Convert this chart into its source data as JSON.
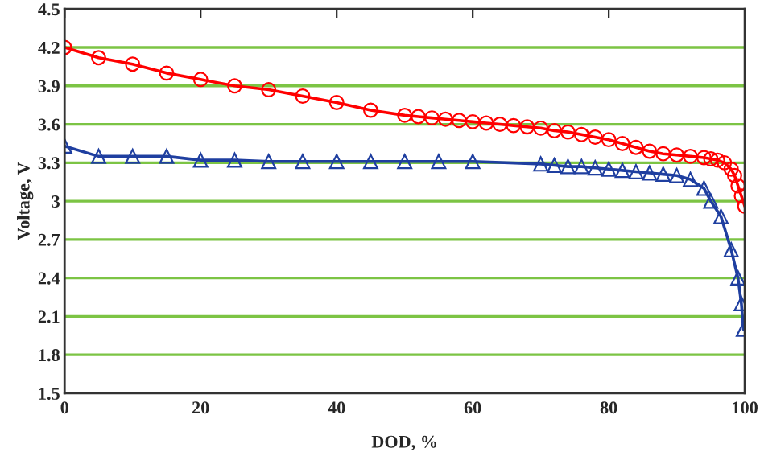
{
  "chart_data": {
    "type": "line",
    "xlabel": "DOD, %",
    "ylabel": "Voltage, V",
    "xlim": [
      0,
      100
    ],
    "xticks": [
      0,
      20,
      40,
      60,
      80,
      100
    ],
    "ylim": [
      1.5,
      4.5
    ],
    "yticks": [
      1.5,
      1.8,
      2.1,
      2.4,
      2.7,
      3,
      3.3,
      3.6,
      3.9,
      4.2,
      4.5
    ],
    "grid": "y",
    "legend": false,
    "series": [
      {
        "color": "#ff0000",
        "marker": "circle",
        "x": [
          0,
          5,
          10,
          15,
          20,
          25,
          30,
          35,
          40,
          45,
          50,
          52,
          54,
          56,
          58,
          60,
          62,
          64,
          66,
          68,
          70,
          72,
          74,
          76,
          78,
          80,
          82,
          84,
          86,
          88,
          90,
          92,
          94,
          95,
          96,
          97,
          98,
          98.5,
          99,
          99.5,
          100
        ],
        "values": [
          4.2,
          4.12,
          4.07,
          4.0,
          3.95,
          3.9,
          3.87,
          3.82,
          3.77,
          3.71,
          3.67,
          3.66,
          3.65,
          3.64,
          3.63,
          3.62,
          3.61,
          3.6,
          3.59,
          3.58,
          3.57,
          3.55,
          3.54,
          3.52,
          3.5,
          3.48,
          3.45,
          3.42,
          3.39,
          3.37,
          3.36,
          3.35,
          3.34,
          3.33,
          3.32,
          3.3,
          3.25,
          3.2,
          3.12,
          3.04,
          2.96
        ]
      },
      {
        "color": "#1f3fa0",
        "marker": "triangle",
        "x": [
          0,
          5,
          10,
          15,
          20,
          25,
          30,
          35,
          40,
          45,
          50,
          55,
          60,
          70,
          72,
          74,
          76,
          78,
          80,
          82,
          84,
          86,
          88,
          90,
          92,
          94,
          95,
          96.5,
          98,
          99,
          99.5,
          99.8
        ],
        "values": [
          3.43,
          3.35,
          3.35,
          3.35,
          3.32,
          3.32,
          3.31,
          3.31,
          3.31,
          3.31,
          3.31,
          3.31,
          3.31,
          3.29,
          3.28,
          3.27,
          3.27,
          3.26,
          3.25,
          3.24,
          3.23,
          3.22,
          3.21,
          3.2,
          3.17,
          3.1,
          3.0,
          2.88,
          2.62,
          2.4,
          2.2,
          2.0
        ]
      }
    ]
  }
}
